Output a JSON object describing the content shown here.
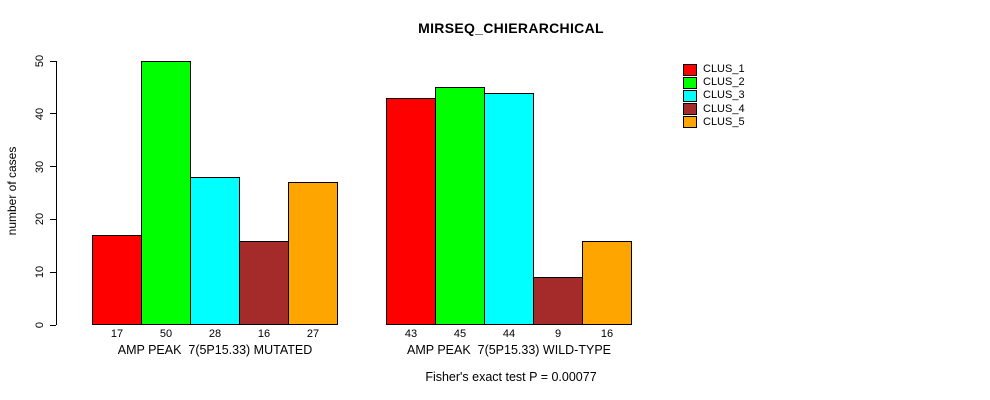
{
  "chart_data": {
    "type": "bar",
    "title": "MIRSEQ_CHIERARCHICAL",
    "ylabel": "number of cases",
    "ylim": [
      0,
      50
    ],
    "yticks": [
      0,
      10,
      20,
      30,
      40,
      50
    ],
    "grid": false,
    "legend_position": "right-inside",
    "categories": [
      "AMP PEAK  7(5P15.33) MUTATED",
      "AMP PEAK  7(5P15.33) WILD-TYPE"
    ],
    "series": [
      {
        "name": "CLUS_1",
        "color": "#FF0000",
        "values": [
          17,
          43
        ]
      },
      {
        "name": "CLUS_2",
        "color": "#00FF00",
        "values": [
          50,
          45
        ]
      },
      {
        "name": "CLUS_3",
        "color": "#00FFFF",
        "values": [
          28,
          44
        ]
      },
      {
        "name": "CLUS_4",
        "color": "#A52A2A",
        "values": [
          16,
          9
        ]
      },
      {
        "name": "CLUS_5",
        "color": "#FFA500",
        "values": [
          27,
          16
        ]
      }
    ],
    "bar_value_labels": true,
    "annotation": "Fisher's exact test P = 0.00077"
  },
  "colors": {
    "background": "#FFFFFF",
    "axis": "#000000",
    "text": "#000000"
  }
}
